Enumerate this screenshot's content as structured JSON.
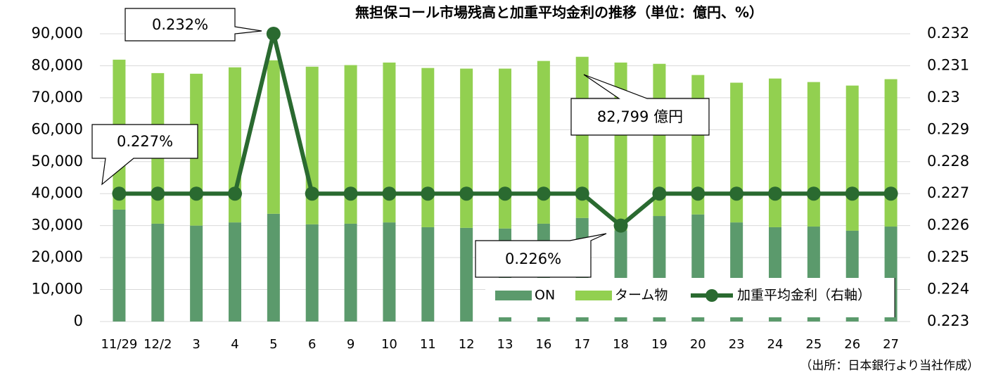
{
  "chart_data": {
    "type": "bar",
    "stacked": true,
    "title": "無担保コール市場残高と加重平均金利の推移（単位：億円、%）",
    "categories": [
      "11/29",
      "12/2",
      "3",
      "4",
      "5",
      "6",
      "9",
      "10",
      "11",
      "12",
      "13",
      "16",
      "17",
      "18",
      "19",
      "20",
      "23",
      "24",
      "25",
      "26",
      "27"
    ],
    "series": [
      {
        "name": "ON",
        "type": "bar",
        "color": "#5b9a6c",
        "values": [
          35000,
          30600,
          30000,
          31000,
          33700,
          30400,
          30600,
          31000,
          29500,
          29300,
          29100,
          30600,
          32400,
          28500,
          33000,
          33500,
          31000,
          29500,
          29700,
          28400,
          29700
        ]
      },
      {
        "name": "ターム物",
        "type": "bar",
        "color": "#92d050",
        "values": [
          46900,
          47100,
          47500,
          48500,
          48000,
          49300,
          49600,
          50000,
          49800,
          49800,
          50000,
          50900,
          50399,
          52500,
          47600,
          43600,
          43700,
          46500,
          45200,
          45400,
          46100
        ]
      },
      {
        "name": "加重平均金利（右軸）",
        "type": "line",
        "axis": "y2",
        "color": "#2a6a30",
        "values": [
          0.227,
          0.227,
          0.227,
          0.227,
          0.232,
          0.227,
          0.227,
          0.227,
          0.227,
          0.227,
          0.227,
          0.227,
          0.227,
          0.226,
          0.227,
          0.227,
          0.227,
          0.227,
          0.227,
          0.227,
          0.227
        ]
      }
    ],
    "ylim": [
      0,
      90000
    ],
    "yticks": [
      0,
      {
        "value": 10000,
        "label": "10,000"
      },
      {
        "value": 20000,
        "label": "20,000"
      },
      {
        "value": 30000,
        "label": "30,000"
      },
      {
        "value": 40000,
        "label": "40,000"
      },
      {
        "value": 50000,
        "label": "50,000"
      },
      {
        "value": 60000,
        "label": "60,000"
      },
      {
        "value": 70000,
        "label": "70,000"
      },
      {
        "value": 80000,
        "label": "80,000"
      },
      {
        "value": 90000,
        "label": "90,000"
      }
    ],
    "y2lim": [
      0.223,
      0.232
    ],
    "y2ticks": [
      0.223,
      0.224,
      0.225,
      0.226,
      0.227,
      0.228,
      0.229,
      0.23,
      0.231,
      0.232
    ],
    "y2ticks_labels_note": null,
    "grid": true,
    "legend": "lower right",
    "annotations": [
      "0.232%",
      "0.227%",
      "82,799 億円",
      "0.226%"
    ],
    "source": "（出所：日本銀行より当社作成）"
  }
}
